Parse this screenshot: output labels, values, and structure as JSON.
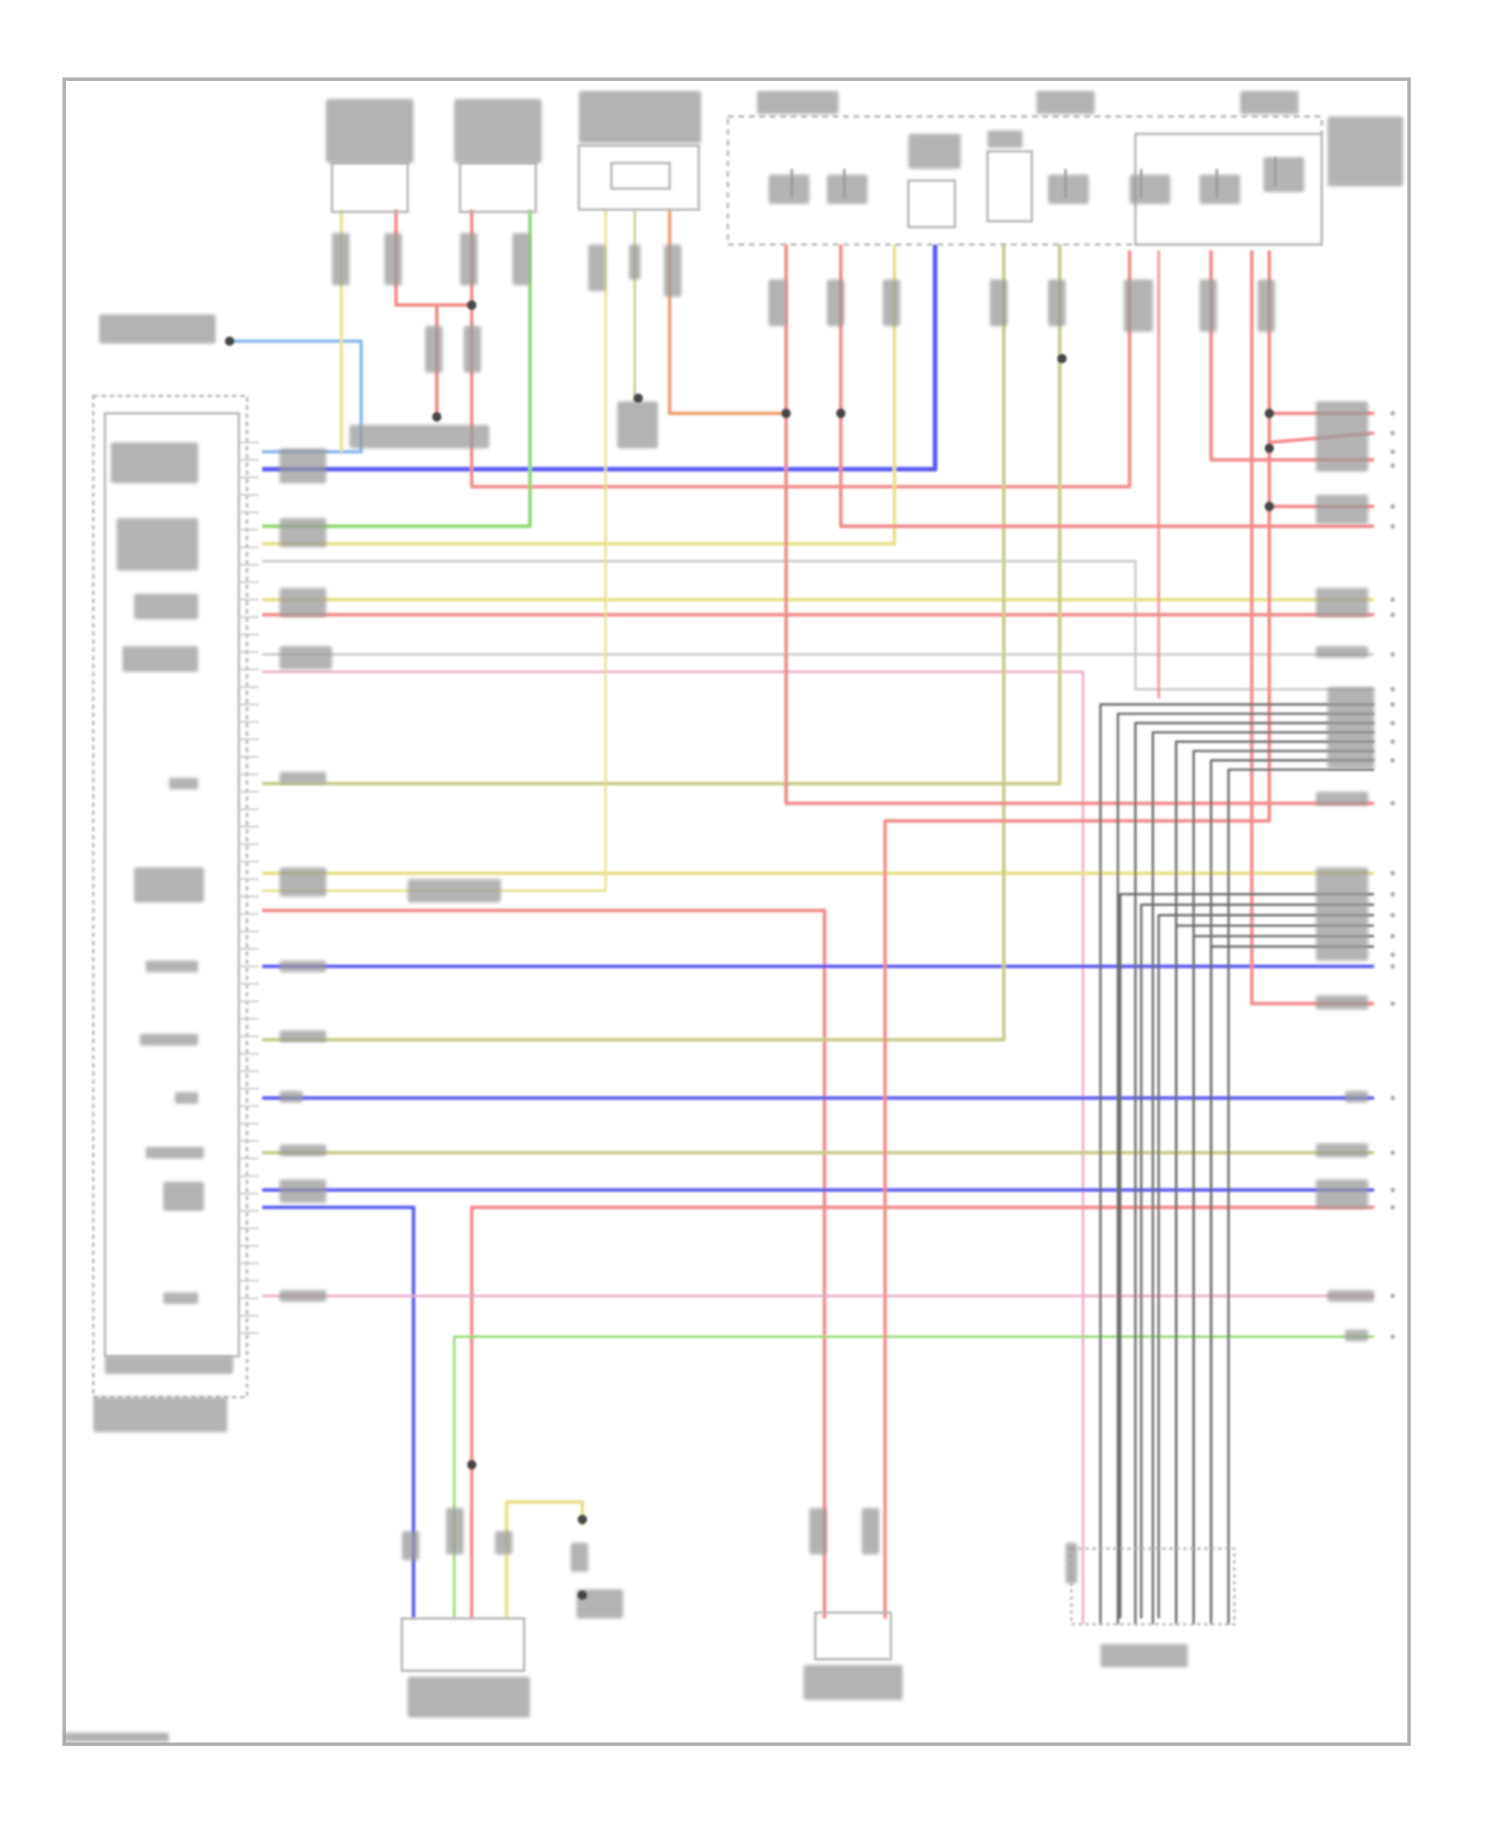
{
  "diagram": {
    "type": "wiring-schematic",
    "text_legible": false,
    "wire_colors": {
      "red": "#f08a8a",
      "pink": "#e9a8c8",
      "blue": "#5b5bf0",
      "light_blue": "#8fb8e8",
      "green": "#8fd870",
      "yellow": "#e8e08a",
      "olive": "#c9c98a",
      "orange": "#f0a070",
      "gray": "#c8c8c8",
      "dark_gray": "#6a6a6a"
    },
    "frame_color": "#b0b0b0",
    "splice_color": "#444444"
  }
}
